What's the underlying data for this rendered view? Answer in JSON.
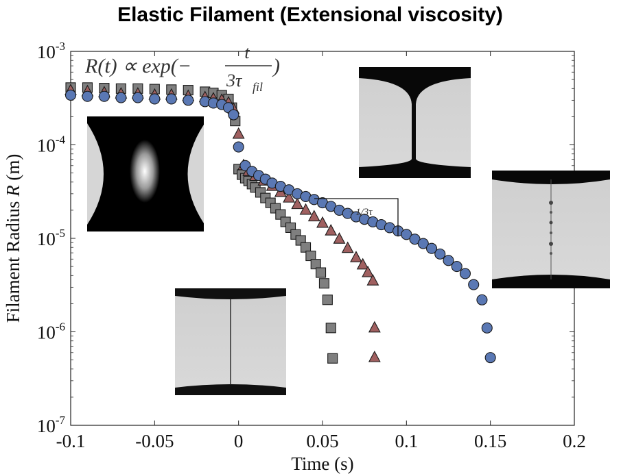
{
  "chart_data": {
    "type": "scatter",
    "title": "Elastic Filament (Extensional viscosity)",
    "xlabel": "Time (s)",
    "ylabel_text": "Filament Radius ",
    "ylabel_var": "R",
    "ylabel_unit": " (m)",
    "x_ticks": [
      "-0.1",
      "-0.05",
      "0",
      "0.05",
      "0.1",
      "0.15",
      "0.2"
    ],
    "x_tick_values": [
      -0.1,
      -0.05,
      0,
      0.05,
      0.1,
      0.15,
      0.2
    ],
    "y_ticks": [
      {
        "base": "10",
        "exp": "-3",
        "value": 0.001
      },
      {
        "base": "10",
        "exp": "-4",
        "value": 0.0001
      },
      {
        "base": "10",
        "exp": "-5",
        "value": 1e-05
      },
      {
        "base": "10",
        "exp": "-6",
        "value": 1e-06
      },
      {
        "base": "10",
        "exp": "-7",
        "value": 1e-07
      }
    ],
    "xlim": [
      -0.1,
      0.2
    ],
    "ylim": [
      1e-07,
      0.001
    ],
    "yscale": "log",
    "grid": false,
    "formula": {
      "lhs": "R(t) ∝ exp(−",
      "num": "t",
      "den": "3τ",
      "den_sub": "fil",
      "rhs": ")"
    },
    "slope_label": "−1/3τ",
    "series": [
      {
        "marker": "square",
        "color": "#7f7f7f",
        "x": [
          -0.1,
          -0.09,
          -0.08,
          -0.07,
          -0.06,
          -0.05,
          -0.04,
          -0.03,
          -0.02,
          -0.015,
          -0.01,
          -0.006,
          -0.004,
          -0.002,
          0,
          0.002,
          0.004,
          0.006,
          0.008,
          0.01,
          0.013,
          0.016,
          0.019,
          0.022,
          0.025,
          0.028,
          0.031,
          0.034,
          0.037,
          0.04,
          0.043,
          0.046,
          0.049,
          0.051,
          0.053,
          0.055,
          0.056
        ],
        "y": [
          0.00041,
          0.00041,
          0.000405,
          0.0004,
          0.0004,
          0.000395,
          0.00039,
          0.000385,
          0.00037,
          0.00036,
          0.00034,
          0.00031,
          0.00025,
          0.00018,
          5.5e-05,
          4.8e-05,
          4.4e-05,
          4.1e-05,
          3.8e-05,
          3.5e-05,
          3.1e-05,
          2.7e-05,
          2.4e-05,
          2.1e-05,
          1.8e-05,
          1.5e-05,
          1.3e-05,
          1.1e-05,
          9.5e-06,
          8e-06,
          6.5e-06,
          5.3e-06,
          4.3e-06,
          3.3e-06,
          2.2e-06,
          1.1e-06,
          5.2e-07
        ]
      },
      {
        "marker": "triangle",
        "color": "#a06060",
        "x": [
          -0.1,
          -0.09,
          -0.08,
          -0.07,
          -0.06,
          -0.05,
          -0.04,
          -0.03,
          -0.02,
          -0.015,
          -0.01,
          -0.006,
          -0.003,
          0,
          0.003,
          0.006,
          0.01,
          0.015,
          0.02,
          0.025,
          0.03,
          0.035,
          0.04,
          0.045,
          0.05,
          0.055,
          0.06,
          0.065,
          0.07,
          0.074,
          0.077,
          0.08,
          0.081,
          0.081
        ],
        "y": [
          0.00038,
          0.00037,
          0.00036,
          0.00035,
          0.00035,
          0.00034,
          0.00034,
          0.00033,
          0.00032,
          0.00031,
          0.0003,
          0.00028,
          0.00024,
          0.00013,
          6e-05,
          5.2e-05,
          4.6e-05,
          4.1e-05,
          3.6e-05,
          3.1e-05,
          2.7e-05,
          2.3e-05,
          2e-05,
          1.7e-05,
          1.45e-05,
          1.2e-05,
          9.8e-06,
          7.8e-06,
          6.2e-06,
          5.2e-06,
          4.3e-06,
          3.5e-06,
          1.1e-06,
          5.3e-07
        ]
      },
      {
        "marker": "circle",
        "color": "#5a78b4",
        "x": [
          -0.1,
          -0.09,
          -0.08,
          -0.07,
          -0.06,
          -0.05,
          -0.04,
          -0.03,
          -0.02,
          -0.015,
          -0.01,
          -0.006,
          -0.003,
          0,
          0.004,
          0.008,
          0.012,
          0.016,
          0.02,
          0.025,
          0.03,
          0.035,
          0.04,
          0.045,
          0.05,
          0.055,
          0.06,
          0.065,
          0.07,
          0.075,
          0.08,
          0.085,
          0.09,
          0.095,
          0.1,
          0.105,
          0.11,
          0.115,
          0.12,
          0.125,
          0.13,
          0.135,
          0.14,
          0.145,
          0.148,
          0.15
        ],
        "y": [
          0.00034,
          0.00033,
          0.00033,
          0.00032,
          0.00032,
          0.00031,
          0.00031,
          0.0003,
          0.00029,
          0.00028,
          0.00027,
          0.00025,
          0.00021,
          9.5e-05,
          6e-05,
          5.2e-05,
          4.7e-05,
          4.3e-05,
          3.9e-05,
          3.6e-05,
          3.3e-05,
          3e-05,
          2.8e-05,
          2.6e-05,
          2.4e-05,
          2.2e-05,
          2e-05,
          1.85e-05,
          1.7e-05,
          1.6e-05,
          1.5e-05,
          1.4e-05,
          1.3e-05,
          1.2e-05,
          1.1e-05,
          9.8e-06,
          8.8e-06,
          7.8e-06,
          6.8e-06,
          5.8e-06,
          5e-06,
          4.2e-06,
          3.2e-06,
          2.2e-06,
          1.1e-06,
          5.3e-07
        ]
      }
    ]
  }
}
